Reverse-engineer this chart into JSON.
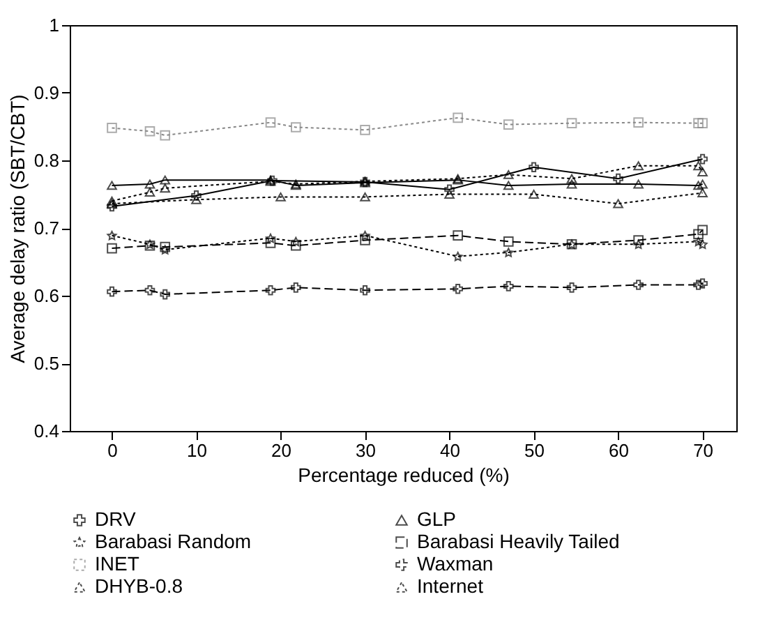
{
  "chart_data": {
    "type": "line",
    "xlabel": "Percentage reduced (%)",
    "ylabel": "Average delay ratio (SBT/CBT)",
    "xlim": [
      -5,
      74
    ],
    "ylim": [
      0.4,
      1
    ],
    "xticks": [
      0,
      10,
      20,
      30,
      40,
      50,
      60,
      70
    ],
    "yticks": [
      0.4,
      0.5,
      0.6,
      0.7,
      0.8,
      0.9,
      1
    ],
    "grid": false,
    "legend": "bottom",
    "series": [
      {
        "name": "DRV",
        "color": "#000000",
        "marker": "cross",
        "line_style": "solid",
        "x": [
          0,
          10,
          19,
          30,
          40,
          50,
          60,
          70
        ],
        "values": [
          0.732,
          0.748,
          0.77,
          0.768,
          0.757,
          0.79,
          0.773,
          0.802
        ]
      },
      {
        "name": "GLP",
        "color": "#000000",
        "marker": "triangle",
        "line_style": "solid",
        "x": [
          0,
          4.5,
          6.3,
          18.8,
          21.8,
          30,
          41,
          47,
          54.5,
          62.4,
          69.5,
          70
        ],
        "values": [
          0.763,
          0.765,
          0.771,
          0.771,
          0.763,
          0.767,
          0.771,
          0.763,
          0.765,
          0.765,
          0.763,
          0.765
        ]
      },
      {
        "name": "Barabasi Random",
        "color": "#000000",
        "marker": "star",
        "line_style": "dotted",
        "x": [
          0,
          4.5,
          6.3,
          18.8,
          21.8,
          30,
          41,
          47,
          54.5,
          62.4,
          69.5,
          70
        ],
        "values": [
          0.689,
          0.676,
          0.668,
          0.685,
          0.68,
          0.689,
          0.658,
          0.664,
          0.676,
          0.676,
          0.68,
          0.676
        ]
      },
      {
        "name": "Barabasi Heavily Tailed",
        "color": "#000000",
        "marker": "square",
        "line_style": "dashed",
        "x": [
          0,
          4.5,
          6.3,
          18.8,
          21.8,
          30,
          41,
          47,
          54.5,
          62.4,
          69.5,
          70
        ],
        "values": [
          0.67,
          0.674,
          0.672,
          0.678,
          0.674,
          0.682,
          0.689,
          0.68,
          0.676,
          0.682,
          0.691,
          0.697
        ]
      },
      {
        "name": "INET",
        "color": "#888888",
        "marker": "square",
        "line_style": "dotted",
        "x": [
          0,
          4.5,
          6.3,
          18.8,
          21.8,
          30,
          41,
          47,
          54.5,
          62.4,
          69.5,
          70
        ],
        "values": [
          0.848,
          0.843,
          0.837,
          0.856,
          0.849,
          0.845,
          0.863,
          0.853,
          0.855,
          0.856,
          0.855,
          0.855
        ]
      },
      {
        "name": "Waxman",
        "color": "#000000",
        "marker": "cross",
        "line_style": "dashed",
        "x": [
          0,
          4.5,
          6.3,
          18.8,
          21.8,
          30,
          41,
          47,
          54.5,
          62.4,
          69.5,
          70
        ],
        "values": [
          0.606,
          0.608,
          0.602,
          0.608,
          0.612,
          0.608,
          0.61,
          0.614,
          0.612,
          0.616,
          0.616,
          0.618
        ]
      },
      {
        "name": "DHYB-0.8",
        "color": "#000000",
        "marker": "triangle",
        "line_style": "dotted",
        "x": [
          0,
          10,
          20,
          30,
          40,
          50,
          60,
          70
        ],
        "values": [
          0.736,
          0.742,
          0.746,
          0.746,
          0.75,
          0.75,
          0.736,
          0.752
        ]
      },
      {
        "name": "Internet",
        "color": "#000000",
        "marker": "triangle",
        "line_style": "dotted",
        "x": [
          0,
          4.5,
          6.3,
          18.8,
          21.8,
          30,
          41,
          47,
          54.5,
          62.4,
          69.5,
          70
        ],
        "values": [
          0.74,
          0.753,
          0.759,
          0.769,
          0.765,
          0.769,
          0.773,
          0.779,
          0.773,
          0.792,
          0.792,
          0.783
        ]
      }
    ]
  }
}
